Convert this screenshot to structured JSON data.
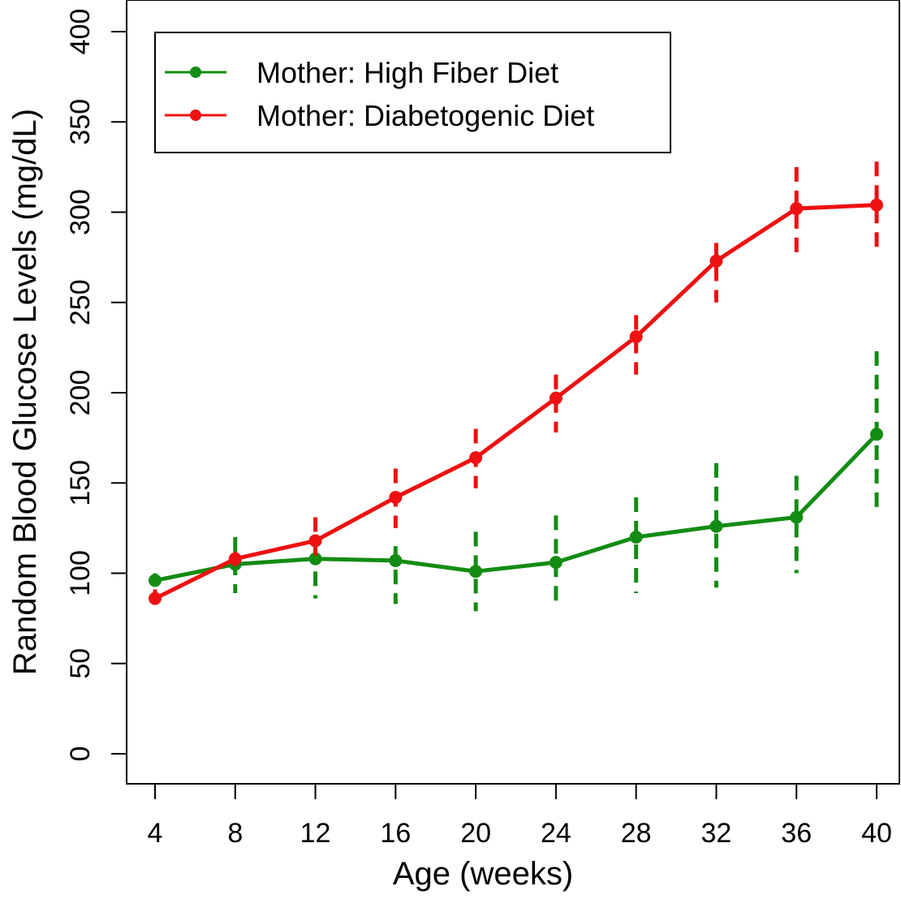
{
  "chart_data": {
    "type": "line",
    "title": "",
    "xlabel": "Age (weeks)",
    "ylabel": "Random Blood Glucose Levels (mg/dL)",
    "x": [
      4,
      8,
      12,
      16,
      20,
      24,
      28,
      32,
      36,
      40
    ],
    "xticks": [
      "4",
      "8",
      "12",
      "16",
      "20",
      "24",
      "28",
      "32",
      "36",
      "40"
    ],
    "yticks": [
      "0",
      "50",
      "100",
      "150",
      "200",
      "250",
      "300",
      "350",
      "400"
    ],
    "ylim": [
      -8,
      415
    ],
    "grid": false,
    "legend": "top-left",
    "series": [
      {
        "name": "Mother: High Fiber Diet",
        "color": "#138c13",
        "values": [
          96,
          105,
          108,
          107,
          101,
          106,
          120,
          126,
          131,
          177
        ],
        "upper": [
          100,
          120,
          114,
          115,
          123,
          132,
          142,
          161,
          154,
          223
        ],
        "lower": [
          94,
          89,
          86,
          83,
          79,
          80,
          89,
          92,
          100,
          132
        ]
      },
      {
        "name": "Mother: Diabetogenic Diet",
        "color": "#ee1111",
        "values": [
          86,
          108,
          118,
          142,
          164,
          197,
          231,
          273,
          302,
          304
        ],
        "upper": [
          91,
          112,
          131,
          158,
          180,
          210,
          243,
          283,
          325,
          328
        ],
        "lower": [
          80,
          100,
          106,
          125,
          147,
          178,
          210,
          250,
          277,
          280
        ]
      }
    ]
  }
}
